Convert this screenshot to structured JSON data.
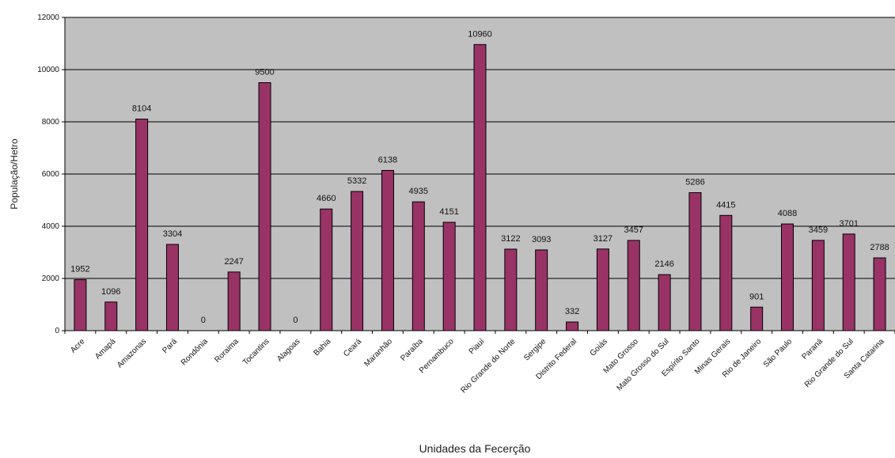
{
  "chart_data": {
    "type": "bar",
    "title": "",
    "xlabel": "Unidades da Fecerção",
    "ylabel": "População/Hetro",
    "ylim": [
      0,
      12000
    ],
    "yticks": [
      0,
      2000,
      4000,
      6000,
      8000,
      10000,
      12000
    ],
    "grid": true,
    "legend": "none",
    "colors": {
      "bar": "#993366",
      "plot_bg": "#c0c0c0",
      "grid": "#000000"
    },
    "categories": [
      "Acre",
      "Amapá",
      "Amazonas",
      "Pará",
      "Rondônia",
      "Roraima",
      "Tocantins",
      "Alagoas",
      "Bahia",
      "Ceará",
      "Maranhão",
      "Paraíba",
      "Pernambuco",
      "Piauí",
      "Rio Grande do Norte",
      "Sergipe",
      "Distrito Federal",
      "Goiás",
      "Mato Grosso",
      "Mato Grosso do Sul",
      "Espírito Santo",
      "Minas Gerais",
      "Rio de Janeiro",
      "São Paulo",
      "Paraná",
      "Rio Grande do Sul",
      "Santa Catarina"
    ],
    "values": [
      1952,
      1096,
      8104,
      3304,
      0,
      2247,
      9500,
      0,
      4660,
      5332,
      6138,
      4935,
      4151,
      10960,
      3122,
      3093,
      332,
      3127,
      3457,
      2146,
      5286,
      4415,
      901,
      4088,
      3459,
      3701,
      2788
    ],
    "data_labels": [
      "1952",
      "1096",
      "8104",
      "3304",
      "0",
      "2247",
      "9500",
      "0",
      "4660",
      "5332",
      "6138",
      "4935",
      "4151",
      "10960",
      "3122",
      "3093",
      "332",
      "3127",
      "3457",
      "2146",
      "5286",
      "4415",
      "901",
      "4088",
      "3459",
      "3701",
      "2788"
    ]
  }
}
